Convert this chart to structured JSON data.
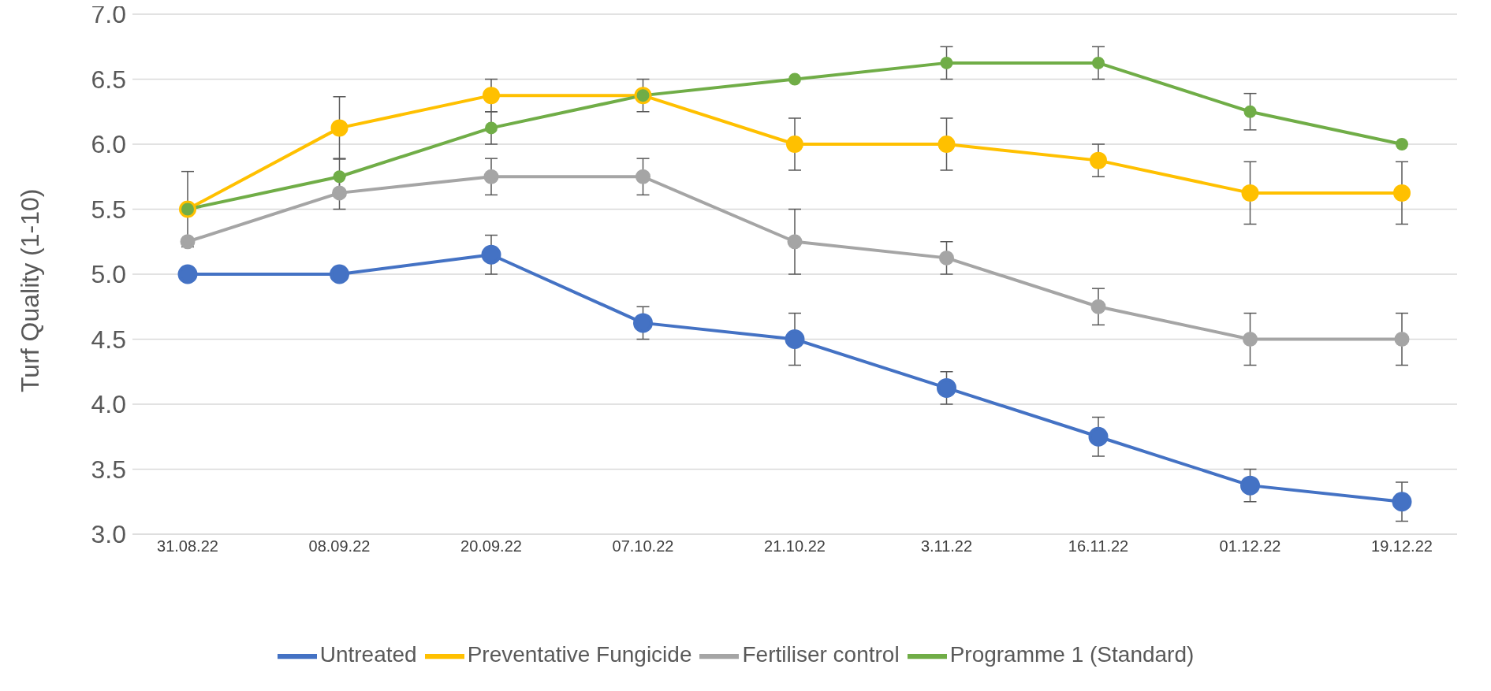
{
  "chart_data": {
    "type": "line",
    "ylabel": "Turf Quality (1-10)",
    "categories": [
      "31.08.22",
      "08.09.22",
      "20.09.22",
      "07.10.22",
      "21.10.22",
      "3.11.22",
      "16.11.22",
      "01.12.22",
      "19.12.22"
    ],
    "series": [
      {
        "name": "Untreated",
        "color": "#4472c4",
        "values": [
          5.0,
          5.0,
          5.15,
          4.625,
          4.5,
          4.125,
          3.75,
          3.375,
          3.25
        ],
        "errors": [
          null,
          null,
          0.15,
          0.125,
          0.2,
          0.125,
          0.15,
          0.125,
          0.15
        ]
      },
      {
        "name": "Preventative Fungicide",
        "color": "#ffc000",
        "values": [
          5.5,
          6.125,
          6.375,
          6.375,
          6.0,
          6.0,
          5.875,
          5.625,
          5.625
        ],
        "errors": [
          0.29,
          0.24,
          0.125,
          null,
          0.2,
          0.2,
          0.125,
          0.24,
          0.24
        ]
      },
      {
        "name": "Fertiliser control",
        "color": "#a5a5a5",
        "values": [
          5.25,
          5.625,
          5.75,
          5.75,
          5.25,
          5.125,
          4.75,
          4.5,
          4.5
        ],
        "errors": [
          null,
          0.125,
          0.14,
          0.14,
          0.25,
          0.125,
          0.14,
          0.2,
          0.2
        ]
      },
      {
        "name": "Programme 1 (Standard)",
        "color": "#70ad47",
        "values": [
          5.5,
          5.75,
          6.125,
          6.375,
          6.5,
          6.625,
          6.625,
          6.25,
          6.0
        ],
        "errors": [
          null,
          0.14,
          0.125,
          0.125,
          null,
          0.125,
          0.125,
          0.14,
          null
        ]
      }
    ],
    "ylim": [
      3,
      7
    ],
    "yticks": [
      {
        "value": 3,
        "label": "3.0"
      },
      {
        "value": 3.5,
        "label": "3.5"
      },
      {
        "value": 4,
        "label": "4.0"
      },
      {
        "value": 4.5,
        "label": "4.5"
      },
      {
        "value": 5,
        "label": "5.0"
      },
      {
        "value": 5.5,
        "label": "5.5"
      },
      {
        "value": 6,
        "label": "6.0"
      },
      {
        "value": 6.5,
        "label": "6.5"
      },
      {
        "value": 7,
        "label": "7.0"
      }
    ],
    "grid": "y",
    "legend": "bottom",
    "marker": "circle",
    "line_style": "solid"
  }
}
